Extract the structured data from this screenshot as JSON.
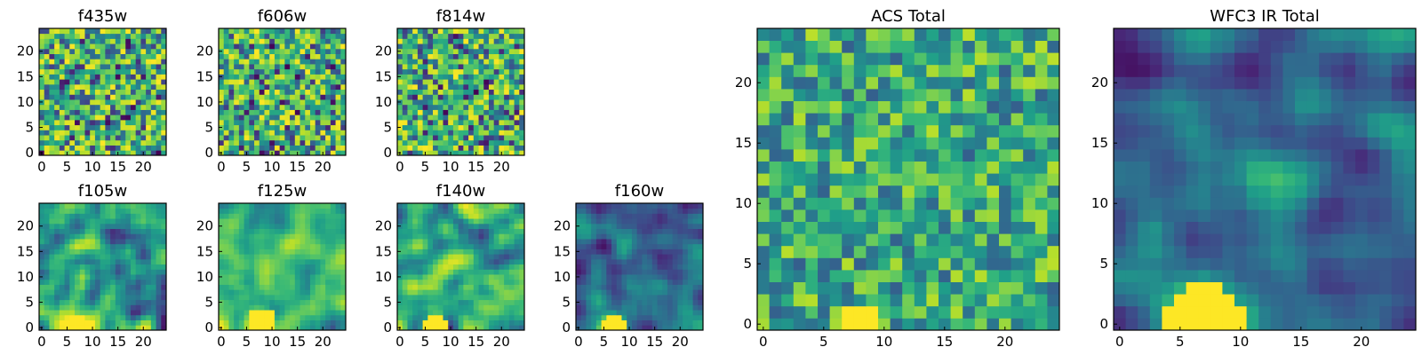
{
  "chart_data": [
    {
      "id": "f435w",
      "type": "heatmap",
      "title": "f435w",
      "size": 25,
      "xticks": [
        0,
        5,
        10,
        15,
        20
      ],
      "yticks": [
        0,
        5,
        10,
        15,
        20
      ],
      "style": "noise",
      "seed": 11,
      "features": []
    },
    {
      "id": "f606w",
      "type": "heatmap",
      "title": "f606w",
      "size": 25,
      "xticks": [
        0,
        5,
        10,
        15,
        20
      ],
      "yticks": [
        0,
        5,
        10,
        15,
        20
      ],
      "style": "noise",
      "seed": 23,
      "features": []
    },
    {
      "id": "f814w",
      "type": "heatmap",
      "title": "f814w",
      "size": 25,
      "xticks": [
        0,
        5,
        10,
        15,
        20
      ],
      "yticks": [
        0,
        5,
        10,
        15,
        20
      ],
      "style": "noise",
      "seed": 37,
      "features": []
    },
    {
      "id": "f105w",
      "type": "heatmap",
      "title": "f105w",
      "size": 25,
      "xticks": [
        0,
        5,
        10,
        15,
        20
      ],
      "yticks": [
        0,
        5,
        10,
        15,
        20
      ],
      "style": "smooth",
      "seed": 41,
      "features": [
        {
          "x": 7,
          "y": 0,
          "r": 2.5,
          "a": 0.35
        }
      ]
    },
    {
      "id": "f125w",
      "type": "heatmap",
      "title": "f125w",
      "size": 25,
      "xticks": [
        0,
        5,
        10,
        15,
        20
      ],
      "yticks": [
        0,
        5,
        10,
        15,
        20
      ],
      "style": "smooth-bright",
      "seed": 53,
      "features": [
        {
          "x": 8,
          "y": 1,
          "r": 3,
          "a": 0.3
        }
      ]
    },
    {
      "id": "f140w",
      "type": "heatmap",
      "title": "f140w",
      "size": 25,
      "xticks": [
        0,
        5,
        10,
        15,
        20
      ],
      "yticks": [
        0,
        5,
        10,
        15,
        20
      ],
      "style": "smooth",
      "seed": 67,
      "features": [
        {
          "x": 7,
          "y": 0,
          "r": 2.5,
          "a": 0.45
        }
      ]
    },
    {
      "id": "f160w",
      "type": "heatmap",
      "title": "f160w",
      "size": 25,
      "xticks": [
        0,
        5,
        10,
        15,
        20
      ],
      "yticks": [
        0,
        5,
        10,
        15,
        20
      ],
      "style": "smooth-dark",
      "seed": 79,
      "features": [
        {
          "x": 7,
          "y": 0,
          "r": 2.5,
          "a": 0.55
        }
      ]
    },
    {
      "id": "acs-total",
      "type": "heatmap",
      "title": "ACS Total",
      "size": 25,
      "xticks": [
        0,
        5,
        10,
        15,
        20
      ],
      "yticks": [
        0,
        5,
        10,
        15,
        20
      ],
      "style": "noise-green",
      "seed": 97,
      "features": [
        {
          "x": 8,
          "y": 0,
          "r": 1.8,
          "a": 0.4
        }
      ]
    },
    {
      "id": "wfc3-ir-total",
      "type": "heatmap",
      "title": "WFC3 IR Total",
      "size": 25,
      "xticks": [
        0,
        5,
        10,
        15,
        20
      ],
      "yticks": [
        0,
        5,
        10,
        15,
        20
      ],
      "style": "smooth-dark",
      "seed": 113,
      "features": [
        {
          "x": 7,
          "y": 0,
          "r": 3.2,
          "a": 0.75
        }
      ]
    }
  ]
}
